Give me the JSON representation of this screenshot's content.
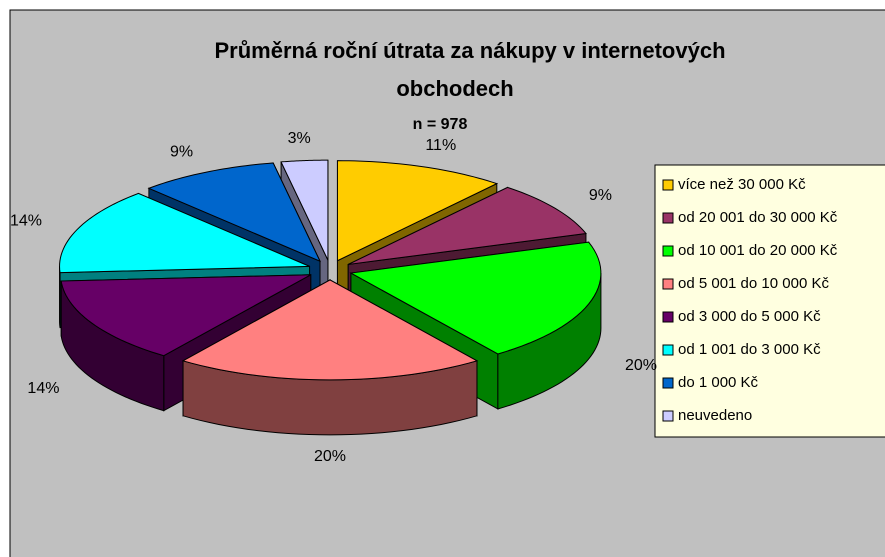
{
  "chart_data": {
    "type": "pie3d",
    "title": "Průměrná roční útrata za nákupy v internetových obchodech",
    "subtitle": "n = 978",
    "categories": [
      "více než 30 000 Kč",
      "od 20 001 do 30 000 Kč",
      "od 10 001 do 20 000 Kč",
      "od 5 001 do 10 000 Kč",
      "od 3 000 do 5 000 Kč",
      "od 1 001 do 3 000 Kč",
      "do 1 000 Kč",
      "neuvedeno"
    ],
    "values": [
      11,
      9,
      20,
      20,
      14,
      14,
      9,
      3
    ],
    "value_labels": [
      "11%",
      "9%",
      "20%",
      "20%",
      "14%",
      "14%",
      "9%",
      "3%"
    ],
    "colors": [
      "#FFCC00",
      "#993366",
      "#00FF00",
      "#FF8080",
      "#660066",
      "#00FFFF",
      "#0066CC",
      "#CCCCFF"
    ],
    "legend": "right"
  }
}
